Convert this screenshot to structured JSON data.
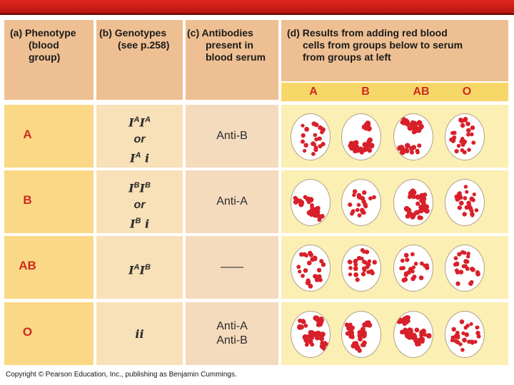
{
  "headers": {
    "phenotype": [
      "(a) Phenotype",
      "(blood",
      "group)"
    ],
    "genotypes": [
      "(b) Genotypes",
      "(see p.258)"
    ],
    "antibodies": [
      "(c) Antibodies",
      "present in",
      "blood serum"
    ],
    "results": [
      "(d) Results from adding red blood",
      "cells from groups below to serum",
      "from groups at left"
    ]
  },
  "donor_groups": [
    "A",
    "B",
    "AB",
    "O"
  ],
  "rows": [
    {
      "phenotype": "A",
      "genotype_lines": [
        {
          "parts": [
            {
              "t": "I",
              "sup": "A"
            },
            {
              "t": "I",
              "sup": "A"
            }
          ]
        },
        {
          "text": "or"
        },
        {
          "parts": [
            {
              "t": "I",
              "sup": "A"
            },
            {
              "t": " i",
              "sup": ""
            }
          ]
        }
      ],
      "antibodies": [
        "Anti-B"
      ],
      "clumping": [
        false,
        true,
        true,
        false
      ]
    },
    {
      "phenotype": "B",
      "genotype_lines": [
        {
          "parts": [
            {
              "t": "I",
              "sup": "B"
            },
            {
              "t": "I",
              "sup": "B"
            }
          ]
        },
        {
          "text": "or"
        },
        {
          "parts": [
            {
              "t": "I",
              "sup": "B"
            },
            {
              "t": " i",
              "sup": ""
            }
          ]
        }
      ],
      "antibodies": [
        "Anti-A"
      ],
      "clumping": [
        true,
        false,
        true,
        false
      ]
    },
    {
      "phenotype": "AB",
      "genotype_lines": [
        {
          "parts": [
            {
              "t": "I",
              "sup": "A"
            },
            {
              "t": "I",
              "sup": "B"
            }
          ]
        }
      ],
      "antibodies": [
        "——"
      ],
      "clumping": [
        false,
        false,
        false,
        false
      ]
    },
    {
      "phenotype": "O",
      "genotype_lines": [
        {
          "text": "ii"
        }
      ],
      "antibodies": [
        "Anti-A",
        "Anti-B"
      ],
      "clumping": [
        true,
        true,
        true,
        false
      ]
    }
  ],
  "copyright": "Copyright © Pearson Education, Inc., publishing as Benjamin Cummings.",
  "colors": {
    "cell_red": "#d8202a",
    "label_red": "#cc2a1f"
  }
}
